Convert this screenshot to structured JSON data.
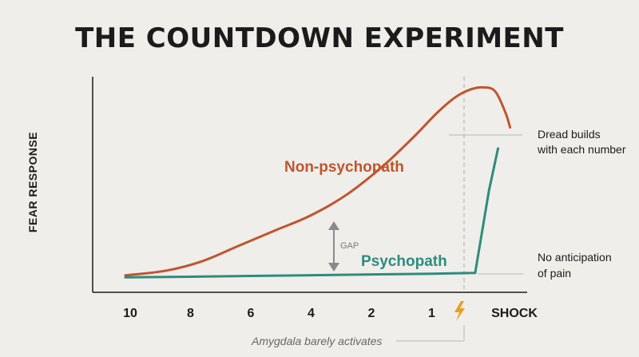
{
  "colors": {
    "non_psychopath": "#c0552e",
    "psychopath": "#2e8b7e",
    "axis": "#1b1b1b",
    "bolt": "#e8a020",
    "gap_arrow": "#8a8a8a",
    "leader": "#b5b5b5"
  },
  "chart_data": {
    "type": "line",
    "title": "THE COUNTDOWN EXPERIMENT",
    "xlabel": "",
    "ylabel": "FEAR RESPONSE",
    "categories": [
      "10",
      "8",
      "6",
      "4",
      "2",
      "1",
      "SHOCK"
    ],
    "x": [
      0,
      1,
      2,
      3,
      4,
      5,
      6
    ],
    "ylim": [
      0,
      100
    ],
    "grid": false,
    "series": [
      {
        "name": "Non-psychopath",
        "x": [
          -0.08,
          0.6,
          1.2,
          1.8,
          2.4,
          3.0,
          3.6,
          4.2,
          4.7,
          5.1,
          5.4,
          5.65,
          5.85,
          6.05,
          6.22,
          6.3
        ],
        "values": [
          0.5,
          3,
          8,
          16,
          24,
          32,
          43,
          58,
          73,
          86,
          94,
          98,
          99,
          97,
          86,
          78
        ]
      },
      {
        "name": "Psychopath",
        "x": [
          -0.08,
          1.0,
          2.0,
          3.0,
          4.0,
          5.0,
          5.6,
          5.72,
          5.95,
          6.1
        ],
        "values": [
          -0.5,
          -0.2,
          0.2,
          0.6,
          1,
          1.4,
          1.7,
          1.8,
          45,
          67
        ]
      }
    ],
    "annotations": {
      "gap": "GAP",
      "shock_icon": "lightning-bolt-icon",
      "dread": [
        "Dread builds",
        "with each number"
      ],
      "no_anticipation": [
        "No anticipation",
        "of pain"
      ],
      "amygdala": "Amygdala barely activates"
    }
  }
}
